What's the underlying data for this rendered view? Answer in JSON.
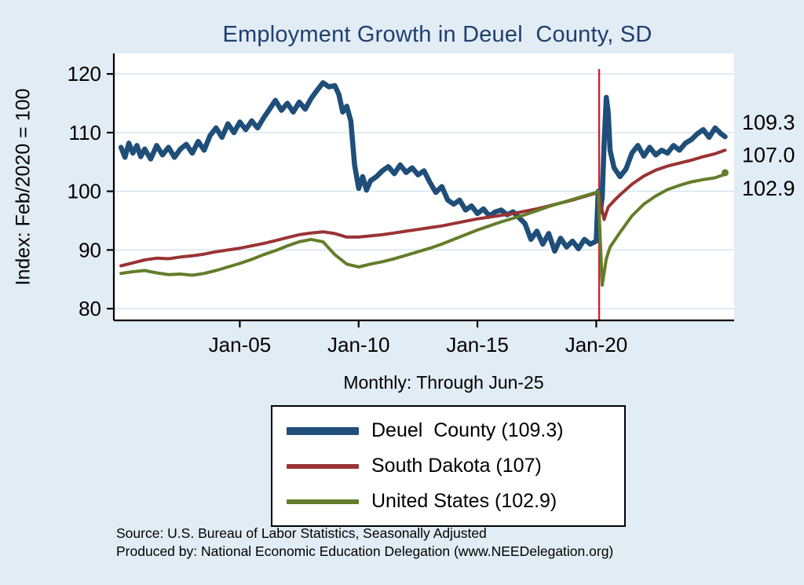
{
  "colors": {
    "background": "#e1ecf4",
    "plot_background": "#ffffff",
    "grid": "#d9e7f2",
    "axis": "#000000",
    "title": "#1f3f6e",
    "vline": "#cc2233"
  },
  "footer": {
    "line1": "Source: U.S. Bureau of Labor Statistics, Seasonally Adjusted",
    "line2": "Produced by: National Economic Education Delegation (www.NEEDelegation.org)"
  },
  "chart_data": {
    "type": "line",
    "title": "Employment Growth in Deuel  County, SD",
    "ylabel": "Index: Feb/2020 = 100",
    "note": "Monthly: Through Jun-25",
    "xlim": [
      1999.7,
      2025.8
    ],
    "ylim": [
      78,
      123.5
    ],
    "grid": true,
    "legend_position": "bottom-center",
    "y_ticks": [
      80,
      90,
      100,
      110,
      120
    ],
    "x_ticks": [
      {
        "v": 2005,
        "label": "Jan-05"
      },
      {
        "v": 2010,
        "label": "Jan-10"
      },
      {
        "v": 2015,
        "label": "Jan-15"
      },
      {
        "v": 2020,
        "label": "Jan-20"
      }
    ],
    "vline_x": 2020.12,
    "end_labels": [
      {
        "text": "109.3",
        "v": 109.3
      },
      {
        "text": "107.0",
        "v": 107.0
      },
      {
        "text": "102.9",
        "v": 102.9
      }
    ],
    "series": [
      {
        "name": "Deuel County",
        "legend": "Deuel  County (109.3)",
        "color": "#1f4e79",
        "width": 6.5,
        "points": [
          [
            2000.0,
            107.5
          ],
          [
            2000.17,
            105.8
          ],
          [
            2000.33,
            108.2
          ],
          [
            2000.5,
            106.5
          ],
          [
            2000.67,
            107.8
          ],
          [
            2000.83,
            105.9
          ],
          [
            2001.0,
            107.2
          ],
          [
            2001.25,
            105.5
          ],
          [
            2001.5,
            107.8
          ],
          [
            2001.75,
            106.2
          ],
          [
            2002.0,
            107.5
          ],
          [
            2002.25,
            105.8
          ],
          [
            2002.5,
            107.2
          ],
          [
            2002.75,
            108.0
          ],
          [
            2003.0,
            106.5
          ],
          [
            2003.25,
            108.5
          ],
          [
            2003.5,
            107.0
          ],
          [
            2003.75,
            109.5
          ],
          [
            2004.0,
            110.8
          ],
          [
            2004.25,
            109.2
          ],
          [
            2004.5,
            111.5
          ],
          [
            2004.75,
            110.0
          ],
          [
            2005.0,
            111.8
          ],
          [
            2005.25,
            110.5
          ],
          [
            2005.5,
            112.0
          ],
          [
            2005.75,
            110.8
          ],
          [
            2006.0,
            112.5
          ],
          [
            2006.25,
            114.0
          ],
          [
            2006.5,
            115.5
          ],
          [
            2006.75,
            113.8
          ],
          [
            2007.0,
            115.0
          ],
          [
            2007.25,
            113.5
          ],
          [
            2007.5,
            115.2
          ],
          [
            2007.75,
            114.0
          ],
          [
            2008.0,
            115.8
          ],
          [
            2008.25,
            117.2
          ],
          [
            2008.5,
            118.5
          ],
          [
            2008.75,
            117.8
          ],
          [
            2009.0,
            118.0
          ],
          [
            2009.17,
            116.5
          ],
          [
            2009.33,
            113.5
          ],
          [
            2009.5,
            114.5
          ],
          [
            2009.67,
            112.0
          ],
          [
            2009.83,
            104.5
          ],
          [
            2010.0,
            100.5
          ],
          [
            2010.17,
            102.5
          ],
          [
            2010.33,
            100.2
          ],
          [
            2010.5,
            101.8
          ],
          [
            2010.75,
            102.5
          ],
          [
            2011.0,
            103.5
          ],
          [
            2011.25,
            104.2
          ],
          [
            2011.5,
            103.0
          ],
          [
            2011.75,
            104.5
          ],
          [
            2012.0,
            103.2
          ],
          [
            2012.25,
            104.0
          ],
          [
            2012.5,
            102.8
          ],
          [
            2012.75,
            103.5
          ],
          [
            2013.0,
            101.5
          ],
          [
            2013.25,
            99.8
          ],
          [
            2013.5,
            100.8
          ],
          [
            2013.75,
            98.5
          ],
          [
            2014.0,
            97.8
          ],
          [
            2014.25,
            98.5
          ],
          [
            2014.5,
            96.8
          ],
          [
            2014.75,
            97.5
          ],
          [
            2015.0,
            96.2
          ],
          [
            2015.25,
            97.0
          ],
          [
            2015.5,
            95.8
          ],
          [
            2015.75,
            96.5
          ],
          [
            2016.0,
            96.8
          ],
          [
            2016.25,
            96.0
          ],
          [
            2016.5,
            96.5
          ],
          [
            2016.75,
            95.5
          ],
          [
            2017.0,
            94.5
          ],
          [
            2017.25,
            91.8
          ],
          [
            2017.5,
            93.2
          ],
          [
            2017.75,
            91.0
          ],
          [
            2018.0,
            92.8
          ],
          [
            2018.25,
            89.8
          ],
          [
            2018.5,
            92.0
          ],
          [
            2018.75,
            90.5
          ],
          [
            2019.0,
            91.5
          ],
          [
            2019.25,
            90.2
          ],
          [
            2019.5,
            91.8
          ],
          [
            2019.75,
            91.0
          ],
          [
            2020.0,
            91.5
          ],
          [
            2020.08,
            100.0
          ],
          [
            2020.17,
            96.5
          ],
          [
            2020.25,
            99.0
          ],
          [
            2020.33,
            108.0
          ],
          [
            2020.42,
            116.0
          ],
          [
            2020.5,
            113.5
          ],
          [
            2020.58,
            107.0
          ],
          [
            2020.75,
            104.0
          ],
          [
            2021.0,
            102.5
          ],
          [
            2021.25,
            103.8
          ],
          [
            2021.5,
            106.5
          ],
          [
            2021.75,
            107.8
          ],
          [
            2022.0,
            106.0
          ],
          [
            2022.25,
            107.5
          ],
          [
            2022.5,
            106.2
          ],
          [
            2022.75,
            107.0
          ],
          [
            2023.0,
            106.5
          ],
          [
            2023.25,
            107.8
          ],
          [
            2023.5,
            107.0
          ],
          [
            2023.75,
            108.2
          ],
          [
            2024.0,
            108.8
          ],
          [
            2024.25,
            109.8
          ],
          [
            2024.5,
            110.5
          ],
          [
            2024.75,
            109.2
          ],
          [
            2025.0,
            110.8
          ],
          [
            2025.25,
            109.8
          ],
          [
            2025.42,
            109.3
          ]
        ]
      },
      {
        "name": "South Dakota",
        "legend": "South Dakota (107)",
        "color": "#9a3334",
        "width": 4,
        "points": [
          [
            2000.0,
            87.3
          ],
          [
            2000.5,
            87.8
          ],
          [
            2001.0,
            88.3
          ],
          [
            2001.5,
            88.6
          ],
          [
            2002.0,
            88.5
          ],
          [
            2002.5,
            88.8
          ],
          [
            2003.0,
            89.0
          ],
          [
            2003.5,
            89.3
          ],
          [
            2004.0,
            89.7
          ],
          [
            2004.5,
            90.0
          ],
          [
            2005.0,
            90.3
          ],
          [
            2005.5,
            90.7
          ],
          [
            2006.0,
            91.1
          ],
          [
            2006.5,
            91.6
          ],
          [
            2007.0,
            92.1
          ],
          [
            2007.5,
            92.6
          ],
          [
            2008.0,
            92.9
          ],
          [
            2008.5,
            93.1
          ],
          [
            2009.0,
            92.8
          ],
          [
            2009.5,
            92.2
          ],
          [
            2010.0,
            92.2
          ],
          [
            2010.5,
            92.4
          ],
          [
            2011.0,
            92.6
          ],
          [
            2011.5,
            92.9
          ],
          [
            2012.0,
            93.2
          ],
          [
            2012.5,
            93.5
          ],
          [
            2013.0,
            93.8
          ],
          [
            2013.5,
            94.1
          ],
          [
            2014.0,
            94.5
          ],
          [
            2014.5,
            94.9
          ],
          [
            2015.0,
            95.3
          ],
          [
            2015.5,
            95.6
          ],
          [
            2016.0,
            95.9
          ],
          [
            2016.5,
            96.2
          ],
          [
            2017.0,
            96.6
          ],
          [
            2017.5,
            97.0
          ],
          [
            2018.0,
            97.5
          ],
          [
            2018.5,
            98.0
          ],
          [
            2019.0,
            98.5
          ],
          [
            2019.5,
            99.1
          ],
          [
            2020.0,
            99.7
          ],
          [
            2020.08,
            100.0
          ],
          [
            2020.33,
            95.2
          ],
          [
            2020.5,
            97.3
          ],
          [
            2020.75,
            98.4
          ],
          [
            2021.0,
            99.4
          ],
          [
            2021.5,
            101.2
          ],
          [
            2022.0,
            102.6
          ],
          [
            2022.5,
            103.6
          ],
          [
            2023.0,
            104.3
          ],
          [
            2023.5,
            104.8
          ],
          [
            2024.0,
            105.3
          ],
          [
            2024.5,
            105.9
          ],
          [
            2025.0,
            106.4
          ],
          [
            2025.42,
            107.0
          ]
        ]
      },
      {
        "name": "United States",
        "legend": "United States (102.9)",
        "color": "#637d2a",
        "width": 4,
        "end_dot": true,
        "points": [
          [
            2000.0,
            86.0
          ],
          [
            2000.5,
            86.3
          ],
          [
            2001.0,
            86.5
          ],
          [
            2001.5,
            86.1
          ],
          [
            2002.0,
            85.8
          ],
          [
            2002.5,
            85.9
          ],
          [
            2003.0,
            85.7
          ],
          [
            2003.5,
            86.0
          ],
          [
            2004.0,
            86.5
          ],
          [
            2004.5,
            87.1
          ],
          [
            2005.0,
            87.7
          ],
          [
            2005.5,
            88.4
          ],
          [
            2006.0,
            89.2
          ],
          [
            2006.5,
            89.9
          ],
          [
            2007.0,
            90.7
          ],
          [
            2007.5,
            91.4
          ],
          [
            2008.0,
            91.8
          ],
          [
            2008.5,
            91.4
          ],
          [
            2009.0,
            89.2
          ],
          [
            2009.5,
            87.6
          ],
          [
            2010.0,
            87.1
          ],
          [
            2010.5,
            87.6
          ],
          [
            2011.0,
            88.0
          ],
          [
            2011.5,
            88.5
          ],
          [
            2012.0,
            89.1
          ],
          [
            2012.5,
            89.7
          ],
          [
            2013.0,
            90.3
          ],
          [
            2013.5,
            91.0
          ],
          [
            2014.0,
            91.8
          ],
          [
            2014.5,
            92.6
          ],
          [
            2015.0,
            93.4
          ],
          [
            2015.5,
            94.1
          ],
          [
            2016.0,
            94.8
          ],
          [
            2016.5,
            95.4
          ],
          [
            2017.0,
            96.0
          ],
          [
            2017.5,
            96.7
          ],
          [
            2018.0,
            97.4
          ],
          [
            2018.5,
            98.0
          ],
          [
            2019.0,
            98.6
          ],
          [
            2019.5,
            99.2
          ],
          [
            2020.0,
            99.8
          ],
          [
            2020.08,
            100.0
          ],
          [
            2020.25,
            84.0
          ],
          [
            2020.42,
            88.5
          ],
          [
            2020.58,
            90.5
          ],
          [
            2020.75,
            91.5
          ],
          [
            2021.0,
            93.0
          ],
          [
            2021.5,
            95.8
          ],
          [
            2022.0,
            97.8
          ],
          [
            2022.5,
            99.2
          ],
          [
            2023.0,
            100.3
          ],
          [
            2023.5,
            101.0
          ],
          [
            2024.0,
            101.6
          ],
          [
            2024.5,
            102.0
          ],
          [
            2025.0,
            102.3
          ],
          [
            2025.42,
            102.9
          ]
        ]
      }
    ]
  }
}
